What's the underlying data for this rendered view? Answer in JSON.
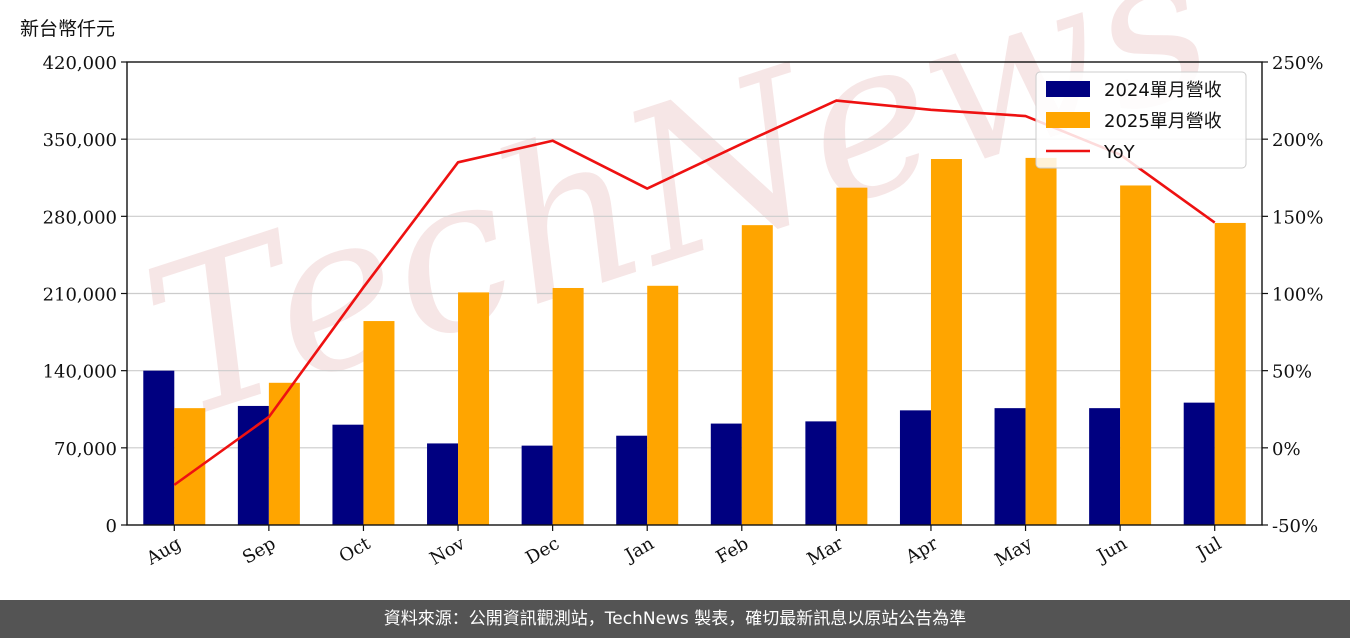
{
  "unit_label": "新台幣仟元",
  "footer_text": "資料來源：公開資訊觀測站，TechNews 製表，確切最新訊息以原站公告為準",
  "watermark": "TechNews",
  "colors": {
    "bar2024": "#000080",
    "bar2025": "#ffa500",
    "line": "#ee1111",
    "grid": "#cccccc"
  },
  "chart_data": {
    "type": "bar",
    "categories": [
      "Aug",
      "Sep",
      "Oct",
      "Nov",
      "Dec",
      "Jan",
      "Feb",
      "Mar",
      "Apr",
      "May",
      "Jun",
      "Jul"
    ],
    "series": [
      {
        "name": "2024單月營收",
        "type": "bar",
        "axis": "left",
        "values": [
          140000,
          108000,
          91000,
          74000,
          72000,
          81000,
          92000,
          94000,
          104000,
          106000,
          106000,
          111000
        ]
      },
      {
        "name": "2025單月營收",
        "type": "bar",
        "axis": "left",
        "values": [
          106000,
          129000,
          185000,
          211000,
          215000,
          217000,
          272000,
          306000,
          332000,
          333000,
          308000,
          274000
        ]
      },
      {
        "name": "YoY",
        "type": "line",
        "axis": "right",
        "values": [
          -24,
          20,
          104,
          185,
          199,
          168,
          197,
          225,
          219,
          215,
          190,
          146
        ]
      }
    ],
    "y_left": {
      "min": 0,
      "max": 420000,
      "ticks": [
        "0",
        "70,000",
        "140,000",
        "210,000",
        "280,000",
        "350,000",
        "420,000"
      ]
    },
    "y_right": {
      "min": -50,
      "max": 250,
      "ticks": [
        "-50%",
        "0%",
        "50%",
        "100%",
        "150%",
        "200%",
        "250%"
      ]
    },
    "grid": "horizontal",
    "legend_position": "top-right"
  }
}
